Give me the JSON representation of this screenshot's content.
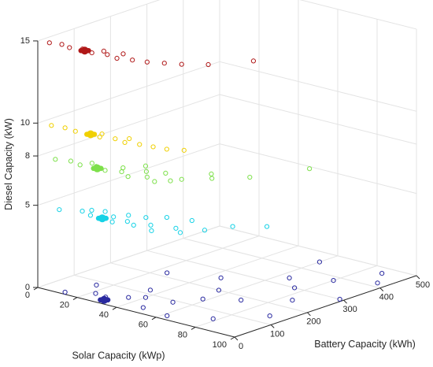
{
  "chart_data": {
    "type": "scatter3d",
    "title": "",
    "axes": {
      "x": {
        "label": "Solar Capacity (kWp)",
        "ticks": [
          0,
          20,
          40,
          60,
          80,
          100
        ],
        "range": [
          0,
          100
        ]
      },
      "y": {
        "label": "Battery Capacity (kWh)",
        "ticks": [
          0,
          100,
          200,
          300,
          400,
          500
        ],
        "range": [
          0,
          500
        ]
      },
      "z": {
        "label": "Diesel Capacity (kW)",
        "ticks": [
          0,
          5,
          8,
          10,
          15
        ],
        "range": [
          0,
          15
        ]
      }
    },
    "grid": true,
    "colors": {
      "0": "#2a2aa0",
      "5": "#16d2e6",
      "8": "#7de04a",
      "10": "#f0d000",
      "15": "#b01818"
    },
    "clusters": [
      {
        "z": 0,
        "center": [
          30,
          20
        ],
        "color": "#2a2aa0",
        "points": [
          [
            12,
            10
          ],
          [
            22,
            40
          ],
          [
            28,
            35
          ],
          [
            35,
            60
          ],
          [
            40,
            80
          ],
          [
            48,
            30
          ],
          [
            52,
            90
          ],
          [
            58,
            140
          ],
          [
            62,
            20
          ],
          [
            70,
            180
          ],
          [
            78,
            60
          ],
          [
            85,
            240
          ],
          [
            92,
            140
          ],
          [
            98,
            300
          ],
          [
            25,
            220
          ],
          [
            45,
            260
          ],
          [
            65,
            340
          ],
          [
            80,
            380
          ],
          [
            95,
            420
          ],
          [
            35,
            120
          ],
          [
            55,
            200
          ],
          [
            75,
            300
          ],
          [
            15,
            80
          ],
          [
            60,
            450
          ],
          [
            88,
            470
          ]
        ]
      },
      {
        "z": 5,
        "center": [
          30,
          15
        ],
        "color": "#16d2e6",
        "points": [
          [
            10,
            5
          ],
          [
            18,
            25
          ],
          [
            24,
            15
          ],
          [
            32,
            35
          ],
          [
            36,
            10
          ],
          [
            40,
            30
          ],
          [
            45,
            20
          ],
          [
            50,
            40
          ],
          [
            55,
            15
          ],
          [
            60,
            55
          ],
          [
            35,
            60
          ],
          [
            25,
            50
          ],
          [
            42,
            70
          ],
          [
            65,
            40
          ],
          [
            70,
            80
          ],
          [
            48,
            95
          ],
          [
            58,
            110
          ],
          [
            75,
            130
          ],
          [
            85,
            170
          ],
          [
            20,
            40
          ]
        ]
      },
      {
        "z": 8,
        "center": [
          28,
          12
        ],
        "color": "#7de04a",
        "points": [
          [
            8,
            5
          ],
          [
            14,
            15
          ],
          [
            20,
            8
          ],
          [
            26,
            20
          ],
          [
            32,
            12
          ],
          [
            38,
            25
          ],
          [
            44,
            10
          ],
          [
            50,
            30
          ],
          [
            56,
            18
          ],
          [
            60,
            40
          ],
          [
            35,
            45
          ],
          [
            45,
            55
          ],
          [
            52,
            70
          ],
          [
            62,
            60
          ],
          [
            70,
            100
          ],
          [
            80,
            150
          ],
          [
            90,
            260
          ],
          [
            22,
            30
          ],
          [
            40,
            80
          ],
          [
            66,
            120
          ]
        ]
      },
      {
        "z": 10,
        "center": [
          25,
          10
        ],
        "color": "#f0d000",
        "points": [
          [
            6,
            5
          ],
          [
            12,
            10
          ],
          [
            18,
            6
          ],
          [
            24,
            15
          ],
          [
            30,
            8
          ],
          [
            36,
            18
          ],
          [
            42,
            12
          ],
          [
            48,
            20
          ],
          [
            54,
            25
          ],
          [
            60,
            30
          ],
          [
            66,
            45
          ],
          [
            40,
            35
          ],
          [
            28,
            25
          ]
        ]
      },
      {
        "z": 15,
        "center": [
          22,
          10
        ],
        "color": "#b01818",
        "points": [
          [
            5,
            5
          ],
          [
            10,
            12
          ],
          [
            15,
            6
          ],
          [
            20,
            15
          ],
          [
            26,
            8
          ],
          [
            32,
            18
          ],
          [
            38,
            12
          ],
          [
            44,
            22
          ],
          [
            50,
            30
          ],
          [
            56,
            45
          ],
          [
            62,
            60
          ],
          [
            70,
            90
          ],
          [
            80,
            160
          ],
          [
            36,
            40
          ],
          [
            28,
            30
          ]
        ]
      }
    ]
  }
}
